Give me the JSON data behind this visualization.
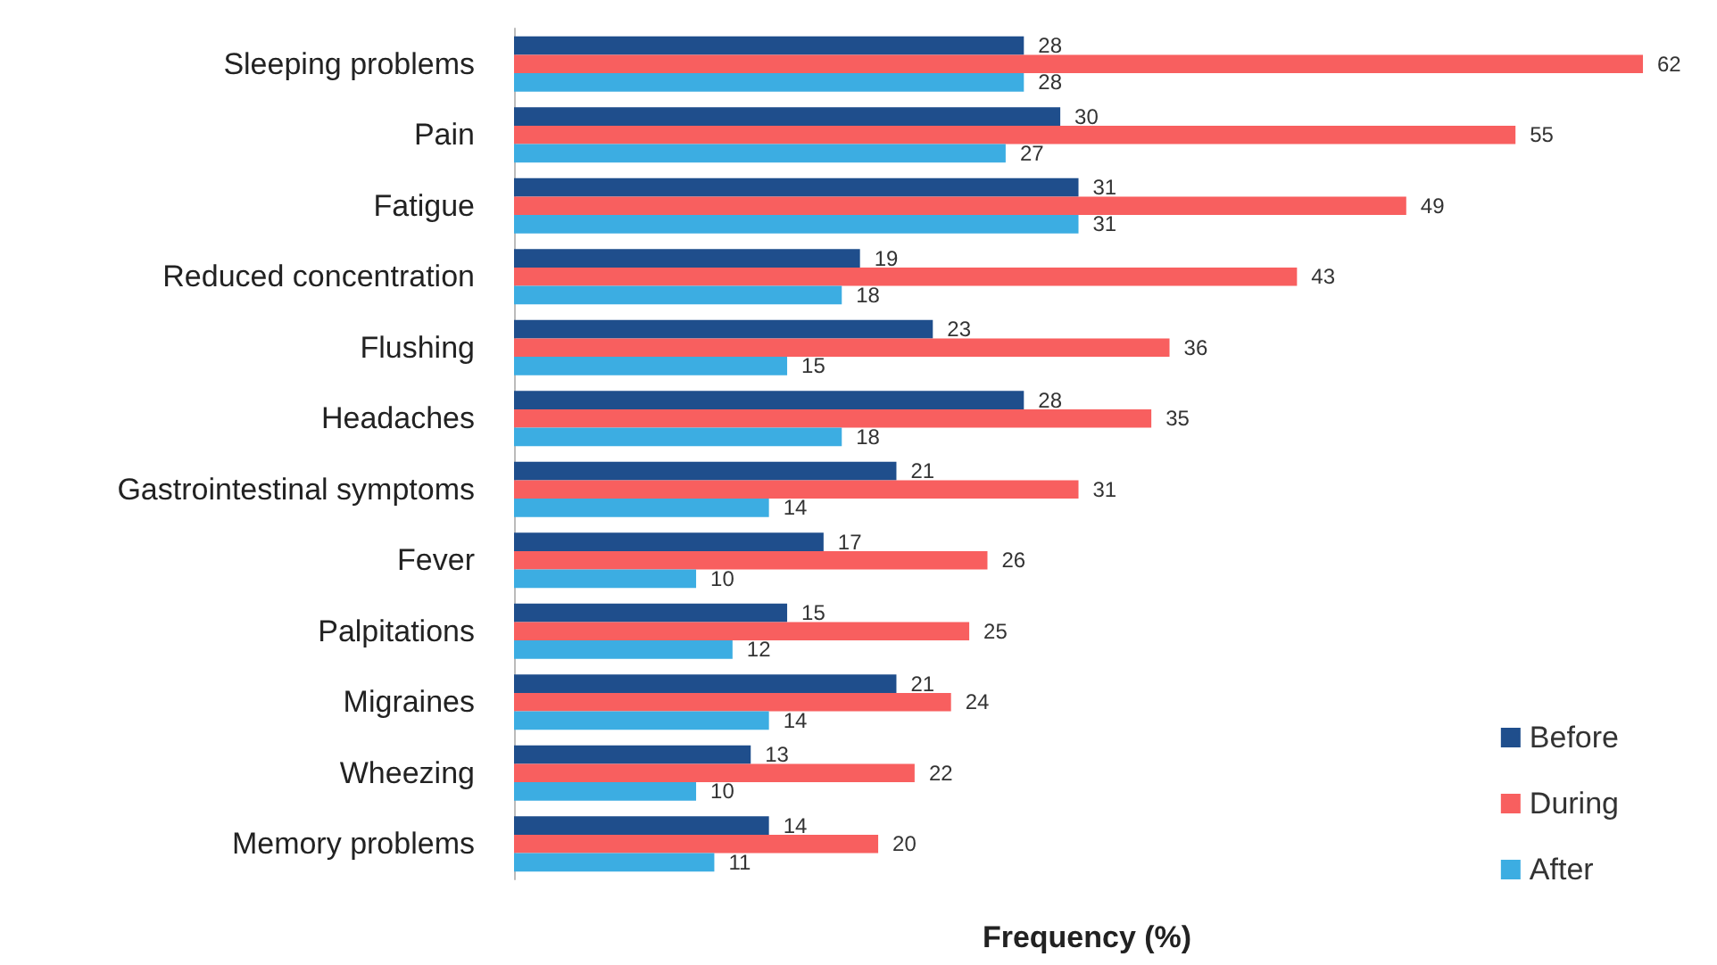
{
  "chart_data": {
    "type": "bar",
    "orientation": "horizontal",
    "xlabel": "Frequency (%)",
    "categories": [
      "Sleeping problems",
      "Pain",
      "Fatigue",
      "Reduced concentration",
      "Flushing",
      "Headaches",
      "Gastrointestinal symptoms",
      "Fever",
      "Palpitations",
      "Migraines",
      "Wheezing",
      "Memory problems"
    ],
    "series": [
      {
        "name": "Before",
        "color": "#1f4e8c",
        "values": [
          28,
          30,
          31,
          19,
          23,
          28,
          21,
          17,
          15,
          21,
          13,
          14
        ]
      },
      {
        "name": "During",
        "color": "#f85f5f",
        "values": [
          62,
          55,
          49,
          43,
          36,
          35,
          31,
          26,
          25,
          24,
          22,
          20
        ]
      },
      {
        "name": "After",
        "color": "#3cade2",
        "values": [
          28,
          27,
          31,
          18,
          15,
          18,
          14,
          10,
          12,
          14,
          10,
          11
        ]
      }
    ],
    "data_labels": true,
    "legend": "bottom right",
    "grid": false
  }
}
